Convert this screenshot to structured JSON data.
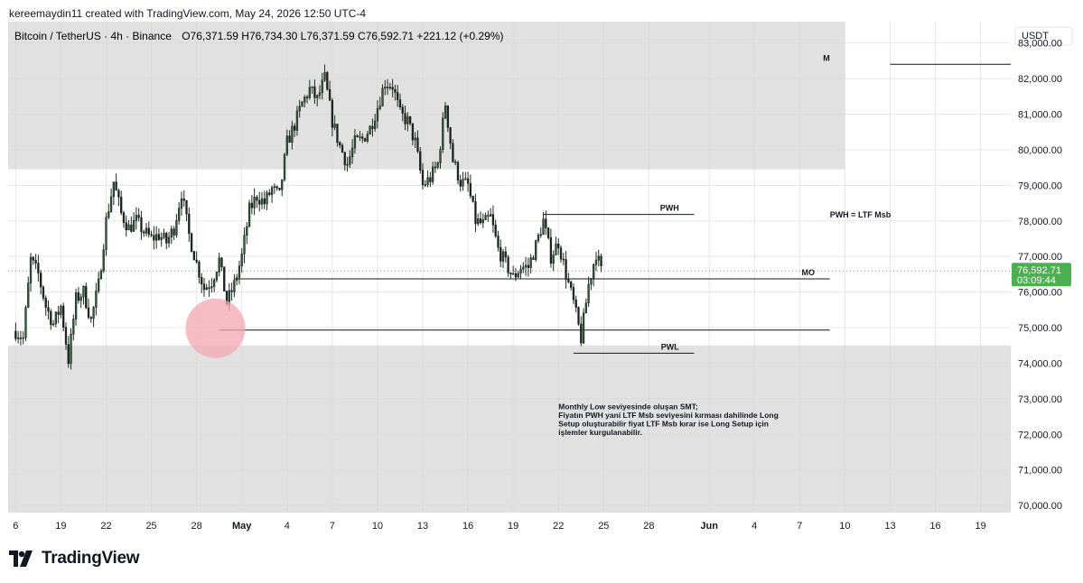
{
  "header": {
    "credit": "kereemaydin11 created with TradingView.com, May 24, 2026 12:50 UTC-4"
  },
  "legend": {
    "symbol": "Bitcoin / TetherUS · 4h · Binance",
    "ohlc": "O76,371.59  H76,734.30  L76,371.59  C76,592.71  +221.12 (+0.29%)"
  },
  "price_axis": {
    "currency": "USDT"
  },
  "current_price": {
    "value": "76,592.71",
    "countdown": "03:09:44",
    "color": "#4caf50"
  },
  "logo": {
    "text": "TradingView"
  },
  "colors": {
    "zone_fill": "#e1e1e1",
    "candle_body": "#2e5e3a",
    "line": "#131722",
    "circle": "#f4a7b0"
  },
  "chart_data": {
    "type": "candlestick",
    "timeframe": "4h",
    "ylim": [
      69800,
      83600
    ],
    "y_ticks": [
      70000,
      71000,
      72000,
      73000,
      74000,
      75000,
      76000,
      77000,
      78000,
      79000,
      80000,
      81000,
      82000,
      83000
    ],
    "y_tick_labels": [
      "70,000.00",
      "71,000.00",
      "72,000.00",
      "73,000.00",
      "74,000.00",
      "75,000.00",
      "76,000.00",
      "77,000.00",
      "78,000.00",
      "79,000.00",
      "80,000.00",
      "81,000.00",
      "82,000.00",
      "83,000.00"
    ],
    "x_ticks": [
      "Apr 16",
      "Apr 19",
      "Apr 22",
      "Apr 25",
      "Apr 28",
      "May 1",
      "May 4",
      "May 7",
      "May 10",
      "May 13",
      "May 16",
      "May 19",
      "May 22",
      "May 25",
      "May 28",
      "Jun 1",
      "Jun 4",
      "Jun 7",
      "Jun 10",
      "Jun 13",
      "Jun 16",
      "Jun 19"
    ],
    "x_tick_labels": [
      "6",
      "19",
      "22",
      "25",
      "28",
      "May",
      "4",
      "7",
      "10",
      "13",
      "16",
      "19",
      "22",
      "25",
      "28",
      "Jun",
      "4",
      "7",
      "10",
      "13",
      "16",
      "19"
    ],
    "x_range": [
      "Apr 15 12:00",
      "Jun 21"
    ],
    "price_path": [
      [
        "Apr 16 00:00",
        74900
      ],
      [
        "Apr 16 12:00",
        74700
      ],
      [
        "Apr 17 00:00",
        76900
      ],
      [
        "Apr 17 12:00",
        76500
      ],
      [
        "Apr 18 00:00",
        75600
      ],
      [
        "Apr 18 12:00",
        75100
      ],
      [
        "Apr 19 00:00",
        75600
      ],
      [
        "Apr 19 12:00",
        74100
      ],
      [
        "Apr 20 00:00",
        75800
      ],
      [
        "Apr 20 12:00",
        76000
      ],
      [
        "Apr 21 00:00",
        75200
      ],
      [
        "Apr 21 12:00",
        76200
      ],
      [
        "Apr 22 00:00",
        78000
      ],
      [
        "Apr 22 12:00",
        79100
      ],
      [
        "Apr 23 00:00",
        78200
      ],
      [
        "Apr 23 12:00",
        77800
      ],
      [
        "Apr 24 00:00",
        78000
      ],
      [
        "Apr 24 12:00",
        77700
      ],
      [
        "Apr 25 00:00",
        77500
      ],
      [
        "Apr 25 12:00",
        77600
      ],
      [
        "Apr 26 00:00",
        77400
      ],
      [
        "Apr 26 12:00",
        77800
      ],
      [
        "Apr 27 00:00",
        78800
      ],
      [
        "Apr 27 12:00",
        77600
      ],
      [
        "Apr 28 00:00",
        76800
      ],
      [
        "Apr 28 12:00",
        76100
      ],
      [
        "Apr 29 00:00",
        76300
      ],
      [
        "Apr 29 12:00",
        76900
      ],
      [
        "Apr 30 00:00",
        75700
      ],
      [
        "Apr 30 12:00",
        76200
      ],
      [
        "May 1 00:00",
        77000
      ],
      [
        "May 1 12:00",
        78300
      ],
      [
        "May 2 00:00",
        78700
      ],
      [
        "May 2 12:00",
        78500
      ],
      [
        "May 3 00:00",
        78900
      ],
      [
        "May 3 12:00",
        78700
      ],
      [
        "May 4 00:00",
        80200
      ],
      [
        "May 4 12:00",
        80700
      ],
      [
        "May 5 00:00",
        81300
      ],
      [
        "May 5 12:00",
        81700
      ],
      [
        "May 6 00:00",
        81400
      ],
      [
        "May 6 12:00",
        82000
      ],
      [
        "May 7 00:00",
        80800
      ],
      [
        "May 7 12:00",
        80100
      ],
      [
        "May 8 00:00",
        79600
      ],
      [
        "May 8 12:00",
        80200
      ],
      [
        "May 9 00:00",
        80300
      ],
      [
        "May 9 12:00",
        80600
      ],
      [
        "May 10 00:00",
        81200
      ],
      [
        "May 10 12:00",
        81900
      ],
      [
        "May 11 00:00",
        81800
      ],
      [
        "May 11 12:00",
        81000
      ],
      [
        "May 12 00:00",
        80800
      ],
      [
        "May 12 12:00",
        80200
      ],
      [
        "May 13 00:00",
        79000
      ],
      [
        "May 13 12:00",
        79200
      ],
      [
        "May 14 00:00",
        79600
      ],
      [
        "May 14 12:00",
        81300
      ],
      [
        "May 15 00:00",
        79700
      ],
      [
        "May 15 12:00",
        79100
      ],
      [
        "May 16 00:00",
        79000
      ],
      [
        "May 16 12:00",
        78000
      ],
      [
        "May 17 00:00",
        77900
      ],
      [
        "May 17 12:00",
        78100
      ],
      [
        "May 18 00:00",
        77200
      ],
      [
        "May 18 12:00",
        76800
      ],
      [
        "May 19 00:00",
        76400
      ],
      [
        "May 19 12:00",
        76700
      ],
      [
        "May 20 00:00",
        76700
      ],
      [
        "May 20 12:00",
        77300
      ],
      [
        "May 21 00:00",
        78000
      ],
      [
        "May 21 12:00",
        77000
      ],
      [
        "May 22 00:00",
        77400
      ],
      [
        "May 22 12:00",
        76500
      ],
      [
        "May 23 00:00",
        75700
      ],
      [
        "May 23 12:00",
        74700
      ],
      [
        "May 24 00:00",
        76200
      ],
      [
        "May 24 12:00",
        77100
      ],
      [
        "May 24 20:00",
        76592.71
      ]
    ],
    "zones": [
      {
        "from": "Apr 15 12:00",
        "to": "Jun 10",
        "low": 79450,
        "high": 83600
      },
      {
        "from": "Apr 15 12:00",
        "to": "Jun 21",
        "low": 69800,
        "high": 74500
      }
    ],
    "levels": [
      {
        "label": "M",
        "price": 82400,
        "from": "Jun 13",
        "to": "Jun 21",
        "label_at": "Jun 9"
      },
      {
        "label": "PWH",
        "price": 78180,
        "from": "May 21",
        "to": "May 31",
        "label_at": "May 30"
      },
      {
        "label": "MO",
        "price": 76371.59,
        "from": "Apr 30 12:00",
        "to": "Jun 9",
        "label_at": "Jun 8"
      },
      {
        "label": "",
        "price": 74930,
        "from": "Apr 29 12:00",
        "to": "Jun 9",
        "label_at": ""
      },
      {
        "label": "PWL",
        "price": 74280,
        "from": "May 23",
        "to": "May 31",
        "label_at": "May 30"
      }
    ],
    "annotations": [
      {
        "text": "PWH = LTF Msb",
        "x": "Jun 9",
        "y": 78100
      },
      {
        "lines": [
          "Monthly Low seviyesinde oluşan SMT;",
          "Fiyatın PWH yani LTF Msb seviyesini kırması dahilinde Long",
          "Setup oluşturabilir fiyat LTF Msb kırar ise Long Setup için",
          "işlemler kurgulanabilir."
        ],
        "x": "May 22",
        "y": 72700
      }
    ],
    "marker": {
      "type": "circle",
      "x": "Apr 29 06:00",
      "y": 74980
    },
    "grid": true,
    "legend": "top-left"
  }
}
